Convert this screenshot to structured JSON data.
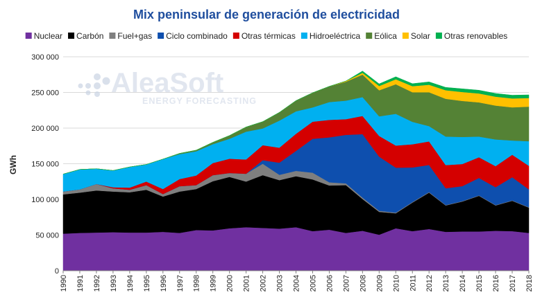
{
  "chart_data": {
    "type": "area",
    "stacked": true,
    "title": "Mix peninsular de generación de electricidad",
    "ylabel": "GWh",
    "xlabel": "",
    "ylim": [
      0,
      300000
    ],
    "yticks": [
      0,
      50000,
      100000,
      150000,
      200000,
      250000,
      300000
    ],
    "ytick_labels": [
      "0",
      "50 000",
      "100 000",
      "150 000",
      "200 000",
      "250 000",
      "300 000"
    ],
    "grid": true,
    "legend_position": "top",
    "x": [
      "1990",
      "1991",
      "1992",
      "1993",
      "1994",
      "1995",
      "1996",
      "1997",
      "1998",
      "1999",
      "2000",
      "2001",
      "2002",
      "2003",
      "2004",
      "2005",
      "2006",
      "2007",
      "2008",
      "2009",
      "2010",
      "2011",
      "2012",
      "2013",
      "2014",
      "2015",
      "2016",
      "2017",
      "2018"
    ],
    "series": [
      {
        "name": "Nuclear",
        "color": "#7030a0",
        "values": [
          52000,
          53000,
          53500,
          54000,
          53500,
          53500,
          54500,
          53000,
          57000,
          56500,
          59500,
          61000,
          60000,
          59000,
          61000,
          55500,
          57500,
          53000,
          56000,
          50500,
          59500,
          55500,
          58500,
          54500,
          55000,
          55000,
          56000,
          55500,
          53000
        ]
      },
      {
        "name": "Carbón",
        "color": "#000000",
        "values": [
          55000,
          56500,
          59000,
          57000,
          56500,
          60000,
          49500,
          58000,
          57500,
          69000,
          72000,
          64000,
          74000,
          68000,
          71500,
          72500,
          62000,
          67000,
          44500,
          32000,
          21000,
          40000,
          51000,
          37000,
          42000,
          50000,
          35500,
          42500,
          35500
        ]
      },
      {
        "name": "Fuel+gas",
        "color": "#7f7f7f",
        "values": [
          4000,
          4500,
          9000,
          4500,
          3500,
          6500,
          3500,
          7500,
          5500,
          8500,
          5500,
          11000,
          16000,
          7500,
          7500,
          9500,
          4500,
          2500,
          2000,
          1500,
          1000,
          800,
          800,
          600,
          600,
          600,
          600,
          600,
          600
        ]
      },
      {
        "name": "Ciclo combinado",
        "color": "#0e4fae",
        "values": [
          0,
          0,
          0,
          0,
          0,
          0,
          0,
          0,
          0,
          0,
          0,
          0,
          5000,
          17000,
          28000,
          47500,
          63000,
          68000,
          89000,
          76000,
          63000,
          48500,
          38000,
          23500,
          21000,
          24500,
          25000,
          32500,
          25000
        ]
      },
      {
        "name": "Otras térmicas",
        "color": "#d40000",
        "values": [
          0,
          0,
          0,
          1500,
          3000,
          5000,
          7000,
          10000,
          13500,
          17000,
          20000,
          20000,
          21000,
          21000,
          24000,
          24000,
          24500,
          22000,
          25500,
          29000,
          31000,
          32500,
          33000,
          32500,
          31000,
          29000,
          29500,
          31500,
          33000
        ]
      },
      {
        "name": "Hidroeléctrica",
        "color": "#00b0f0",
        "values": [
          24500,
          28000,
          21500,
          23500,
          29000,
          24000,
          42000,
          35000,
          34000,
          26500,
          28000,
          39000,
          23500,
          38000,
          31500,
          20000,
          25000,
          26000,
          26500,
          27500,
          44500,
          31500,
          21500,
          40000,
          38000,
          29000,
          37500,
          20000,
          34500
        ]
      },
      {
        "name": "Eólica",
        "color": "#548235",
        "values": [
          0,
          0,
          0,
          0,
          0,
          0,
          0,
          1000,
          1500,
          2500,
          4500,
          6500,
          9500,
          11500,
          15000,
          20500,
          22000,
          26500,
          31500,
          36500,
          41500,
          41500,
          47500,
          53000,
          50500,
          48000,
          47500,
          46500,
          48500
        ]
      },
      {
        "name": "Solar",
        "color": "#ffc000",
        "values": [
          0,
          0,
          0,
          0,
          0,
          0,
          0,
          0,
          0,
          0,
          0,
          0,
          0,
          0,
          0,
          0,
          0,
          1000,
          2500,
          6000,
          7000,
          8500,
          10500,
          12000,
          12500,
          12500,
          12500,
          12500,
          12000
        ]
      },
      {
        "name": "Otras renovables",
        "color": "#00b050",
        "values": [
          0,
          0,
          0,
          0,
          0,
          0,
          0,
          0,
          0,
          0,
          0,
          0,
          0,
          0,
          0,
          0,
          0,
          0,
          2500,
          3000,
          3500,
          3500,
          4000,
          4000,
          4500,
          4500,
          4500,
          4500,
          4500
        ]
      }
    ]
  },
  "watermark": {
    "brand": "AleaSoft",
    "tagline": "ENERGY FORECASTING"
  }
}
